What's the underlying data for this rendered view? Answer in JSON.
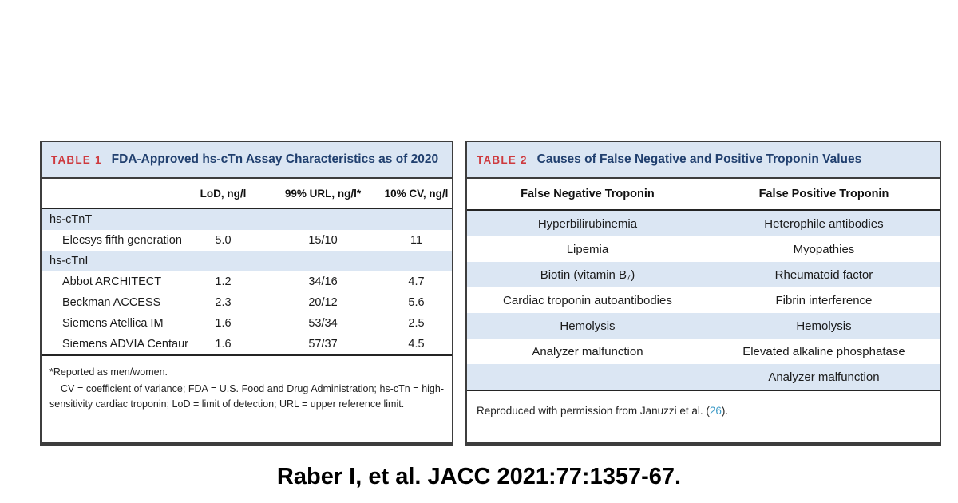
{
  "colors": {
    "band_blue": "#dbe6f3",
    "label_red": "#ce3a3f",
    "title_navy": "#21406f",
    "link_blue": "#3d9bc7",
    "border_dark": "#3d3d3d"
  },
  "table1": {
    "label": "TABLE 1",
    "title": "FDA-Approved hs-cTn Assay Characteristics as of 2020",
    "columns": [
      "LoD, ng/l",
      "99% URL, ng/l*",
      "10% CV, ng/l"
    ],
    "sections": [
      {
        "name": "hs-cTnT",
        "rows": [
          {
            "assay": "Elecsys fifth generation",
            "lod": "5.0",
            "url": "15/10",
            "cv": "11"
          }
        ]
      },
      {
        "name": "hs-cTnI",
        "rows": [
          {
            "assay": "Abbot ARCHITECT",
            "lod": "1.2",
            "url": "34/16",
            "cv": "4.7"
          },
          {
            "assay": "Beckman ACCESS",
            "lod": "2.3",
            "url": "20/12",
            "cv": "5.6"
          },
          {
            "assay": "Siemens Atellica IM",
            "lod": "1.6",
            "url": "53/34",
            "cv": "2.5"
          },
          {
            "assay": "Siemens ADVIA Centaur",
            "lod": "1.6",
            "url": "57/37",
            "cv": "4.5"
          }
        ]
      }
    ],
    "footnotes": [
      "*Reported as men/women.",
      "CV = coefficient of variance; FDA = U.S. Food and Drug Administration; hs-cTn = high-sensitivity cardiac troponin; LoD = limit of detection; URL = upper reference limit."
    ]
  },
  "table2": {
    "label": "TABLE 2",
    "title": "Causes of False Negative and Positive Troponin Values",
    "columns": [
      "False Negative Troponin",
      "False Positive Troponin"
    ],
    "rows": [
      [
        "Hyperbilirubinemia",
        "Heterophile antibodies"
      ],
      [
        "Lipemia",
        "Myopathies"
      ],
      [
        "Biotin (vitamin B₇)",
        "Rheumatoid factor"
      ],
      [
        "Cardiac troponin autoantibodies",
        "Fibrin interference"
      ],
      [
        "Hemolysis",
        "Hemolysis"
      ],
      [
        "Analyzer malfunction",
        "Elevated alkaline phosphatase"
      ],
      [
        "",
        "Analyzer malfunction"
      ]
    ],
    "footer": {
      "prefix": "Reproduced with permission from Januzzi et al. (",
      "reference": "26",
      "suffix": ")."
    }
  },
  "citation": "Raber I, et al. JACC 2021:77:1357-67."
}
